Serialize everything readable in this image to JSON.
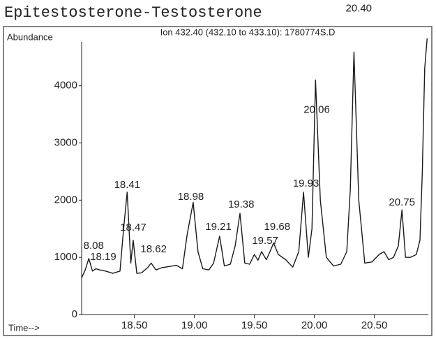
{
  "chart_data": {
    "type": "line",
    "title": "Epitestosterone-Testosterone",
    "subtitle": "Ion 432.40 (432.10 to 433.10): 1780774S.D",
    "y_label": "Abundance",
    "x_label": "Time-->",
    "color": "#1a1a1a",
    "grid": false,
    "xlim": [
      18.06,
      20.95
    ],
    "ylim": [
      0,
      4950
    ],
    "xticks": [
      {
        "value": 18.5,
        "label": "18.50"
      },
      {
        "value": 19,
        "label": "19.00"
      },
      {
        "value": 19.5,
        "label": "19.50"
      },
      {
        "value": 20,
        "label": "20.00"
      },
      {
        "value": 20.5,
        "label": "20.50"
      }
    ],
    "yticks": [
      0,
      1000,
      2000,
      3000,
      4000
    ],
    "x": [
      18.06,
      18.09,
      18.12,
      18.15,
      18.18,
      18.21,
      18.26,
      18.32,
      18.38,
      18.41,
      18.44,
      18.47,
      18.49,
      18.52,
      18.56,
      18.61,
      18.64,
      18.68,
      18.73,
      18.79,
      18.85,
      18.9,
      18.94,
      18.99,
      19.03,
      19.07,
      19.12,
      19.16,
      19.21,
      19.25,
      19.3,
      19.34,
      19.38,
      19.42,
      19.46,
      19.5,
      19.53,
      19.56,
      19.6,
      19.63,
      19.66,
      19.7,
      19.76,
      19.82,
      19.87,
      19.91,
      19.95,
      19.98,
      20.01,
      20.05,
      20.1,
      20.16,
      20.22,
      20.27,
      20.3,
      20.33,
      20.37,
      20.42,
      20.48,
      20.54,
      20.58,
      20.62,
      20.66,
      20.7,
      20.73,
      20.76,
      20.8,
      20.85,
      20.88,
      20.9,
      20.92,
      20.94
    ],
    "values": [
      640,
      780,
      980,
      760,
      800,
      780,
      760,
      720,
      760,
      1500,
      2140,
      900,
      1300,
      720,
      730,
      820,
      900,
      780,
      820,
      840,
      860,
      800,
      1400,
      1960,
      1100,
      800,
      780,
      900,
      1370,
      850,
      880,
      1200,
      1770,
      900,
      880,
      1050,
      950,
      1100,
      960,
      1100,
      1250,
      1050,
      960,
      830,
      1100,
      2140,
      1000,
      1500,
      4100,
      2000,
      1000,
      850,
      880,
      1100,
      2200,
      4590,
      2000,
      900,
      920,
      1050,
      1100,
      960,
      1000,
      1200,
      1830,
      1000,
      1000,
      1050,
      1300,
      2500,
      4300,
      4830
    ],
    "annotations": [
      {
        "text": "8.08",
        "x": 18.16,
        "y": 1200
      },
      {
        "text": "18.19",
        "x": 18.24,
        "y": 1003
      },
      {
        "text": "18.41",
        "x": 18.44,
        "y": 2263
      },
      {
        "text": "18.47",
        "x": 18.49,
        "y": 1517
      },
      {
        "text": "18.62",
        "x": 18.66,
        "y": 1138
      },
      {
        "text": "18.98",
        "x": 18.97,
        "y": 2055
      },
      {
        "text": "19.21",
        "x": 19.2,
        "y": 1529
      },
      {
        "text": "19.38",
        "x": 19.39,
        "y": 1920
      },
      {
        "text": "19.57",
        "x": 19.59,
        "y": 1284
      },
      {
        "text": "19.68",
        "x": 19.69,
        "y": 1529
      },
      {
        "text": "19.93",
        "x": 19.93,
        "y": 2287
      },
      {
        "text": "20.06",
        "x": 20.02,
        "y": 3572
      },
      {
        "text": "20.40",
        "x": 20.37,
        "y": 5346
      },
      {
        "text": "20.75",
        "x": 20.73,
        "y": 1957
      }
    ]
  }
}
